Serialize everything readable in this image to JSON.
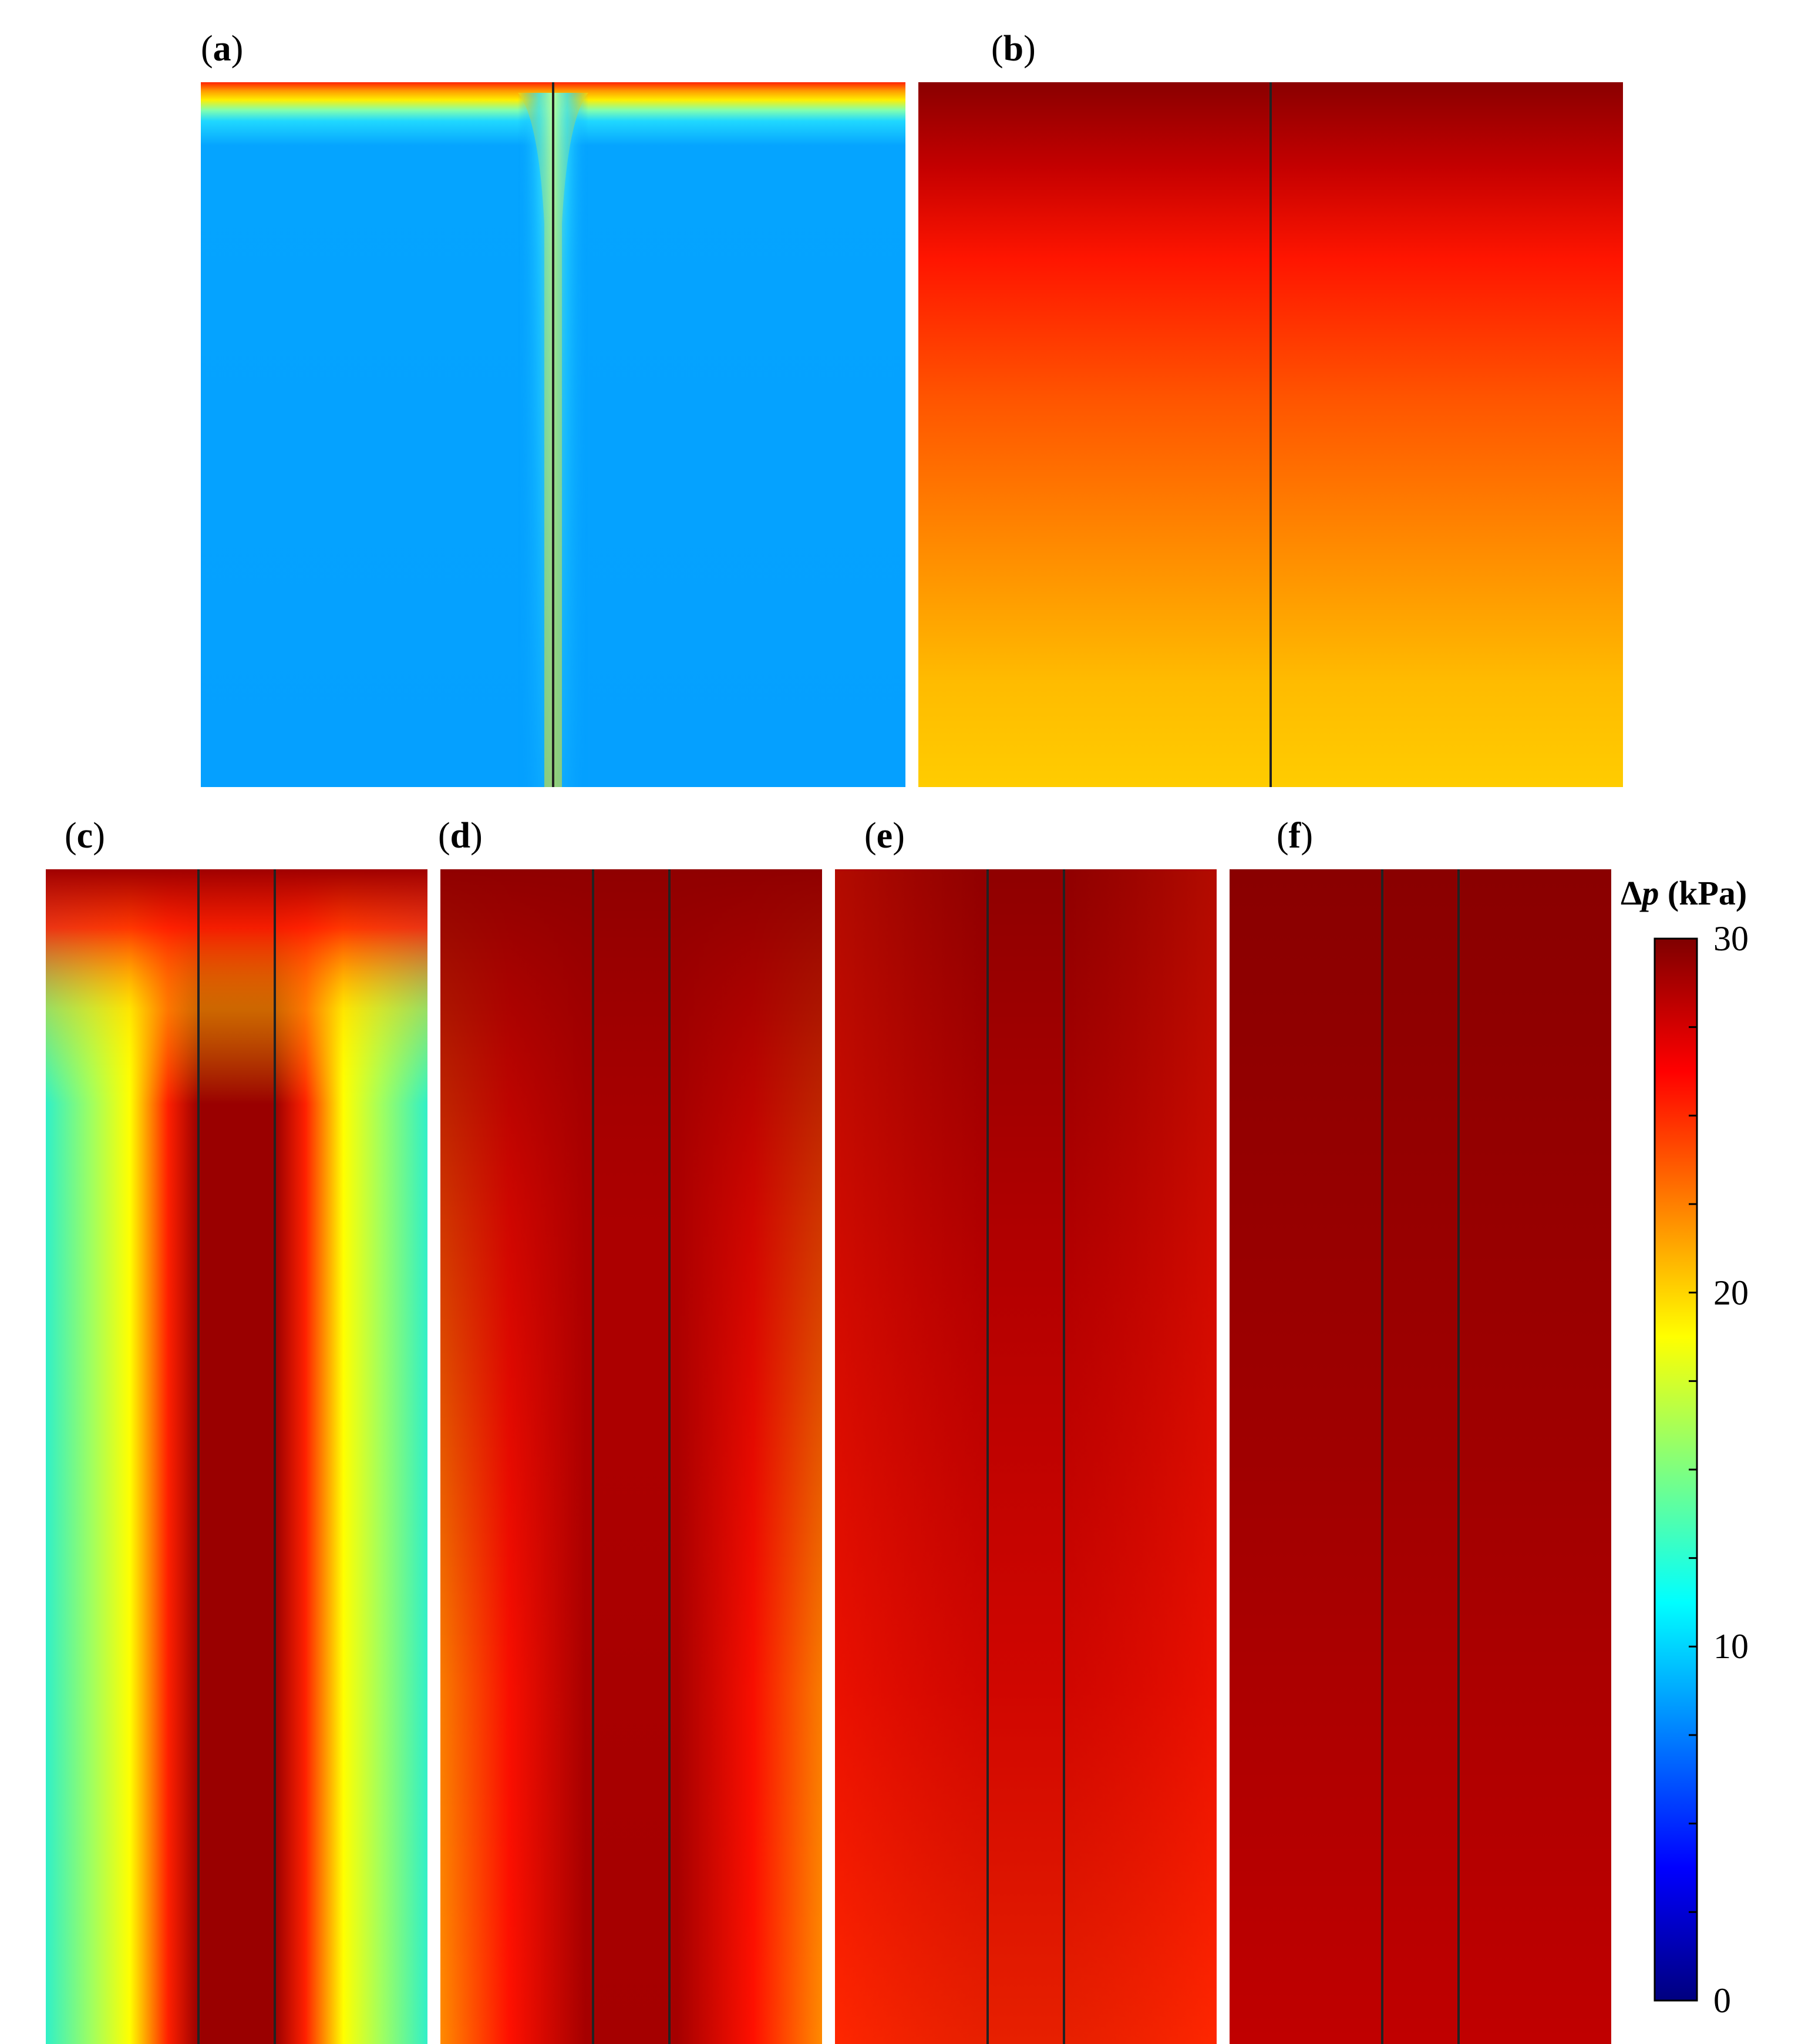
{
  "chart_data": {
    "type": "heatmap",
    "quantity_symbol": "Δ",
    "quantity_var": "p",
    "quantity_unit": "(kPa)",
    "colorbar": {
      "min": 0,
      "max": 30,
      "tick_labels": [
        "30",
        "20",
        "10",
        "0"
      ],
      "tick_values": [
        30,
        20,
        10,
        0
      ],
      "minor_tick_values": [
        0,
        2.5,
        5,
        7.5,
        10,
        12.5,
        15,
        17.5,
        20,
        22.5,
        25,
        27.5,
        30
      ],
      "colormap": [
        "#00007f",
        "#0000ff",
        "#007fff",
        "#00ffff",
        "#7fff7f",
        "#ffff00",
        "#ff7f00",
        "#ff0000",
        "#7f0000"
      ]
    },
    "panels": [
      {
        "id": "a",
        "label_open": "(",
        "label_letter": "a",
        "label_close": ")",
        "description": "Low pressure field with high values along top boundary and central divider"
      },
      {
        "id": "b",
        "label_open": "(",
        "label_letter": "b",
        "label_close": ")",
        "description": "Vertical gradient from dark red (top) to orange-yellow (bottom)"
      },
      {
        "id": "c",
        "label_open": "(",
        "label_letter": "c",
        "label_close": ")",
        "description": "Dark red central column with yellow bands and cyan outer regions"
      },
      {
        "id": "d",
        "label_open": "(",
        "label_letter": "d",
        "label_close": ")",
        "description": "Dark red center fading to red and orange at edges"
      },
      {
        "id": "e",
        "label_open": "(",
        "label_letter": "e",
        "label_close": ")",
        "description": "Mostly dark red to red field"
      },
      {
        "id": "f",
        "label_open": "(",
        "label_letter": "f",
        "label_close": ")",
        "description": "Nearly uniform dark red field"
      }
    ]
  }
}
